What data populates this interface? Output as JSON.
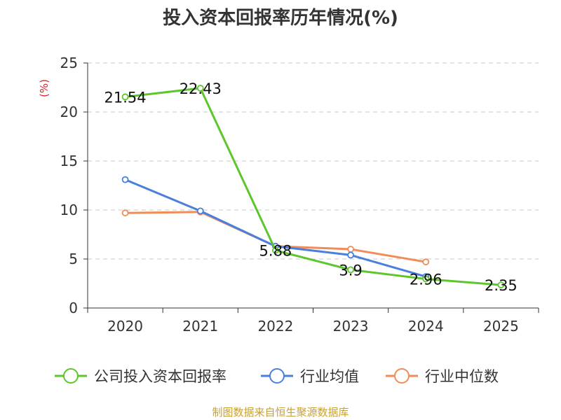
{
  "chart_data": {
    "type": "line",
    "title": "投入资本回报率历年情况(%)",
    "ylabel": "(%)",
    "xlabel": "",
    "categories": [
      "2020",
      "2021",
      "2022",
      "2023",
      "2024",
      "2025"
    ],
    "ylim": [
      0,
      25
    ],
    "yticks": [
      "0",
      "5",
      "10",
      "15",
      "20",
      "25"
    ],
    "grid": true,
    "legend_position": "bottom",
    "series": [
      {
        "name": "公司投入资本回报率",
        "color": "#5cc62b",
        "values": [
          21.54,
          22.43,
          5.88,
          3.9,
          2.96,
          2.35
        ],
        "labels": [
          "21.54",
          "22.43",
          "5.88",
          "3.9",
          "2.96",
          "2.35"
        ]
      },
      {
        "name": "行业均值",
        "color": "#4a7fdc",
        "values": [
          13.1,
          9.9,
          6.3,
          5.4,
          3.2,
          null
        ]
      },
      {
        "name": "行业中位数",
        "color": "#f08c5a",
        "values": [
          9.7,
          9.8,
          6.3,
          6.0,
          4.7,
          null
        ]
      }
    ]
  },
  "source": "制图数据来自恒生聚源数据库"
}
